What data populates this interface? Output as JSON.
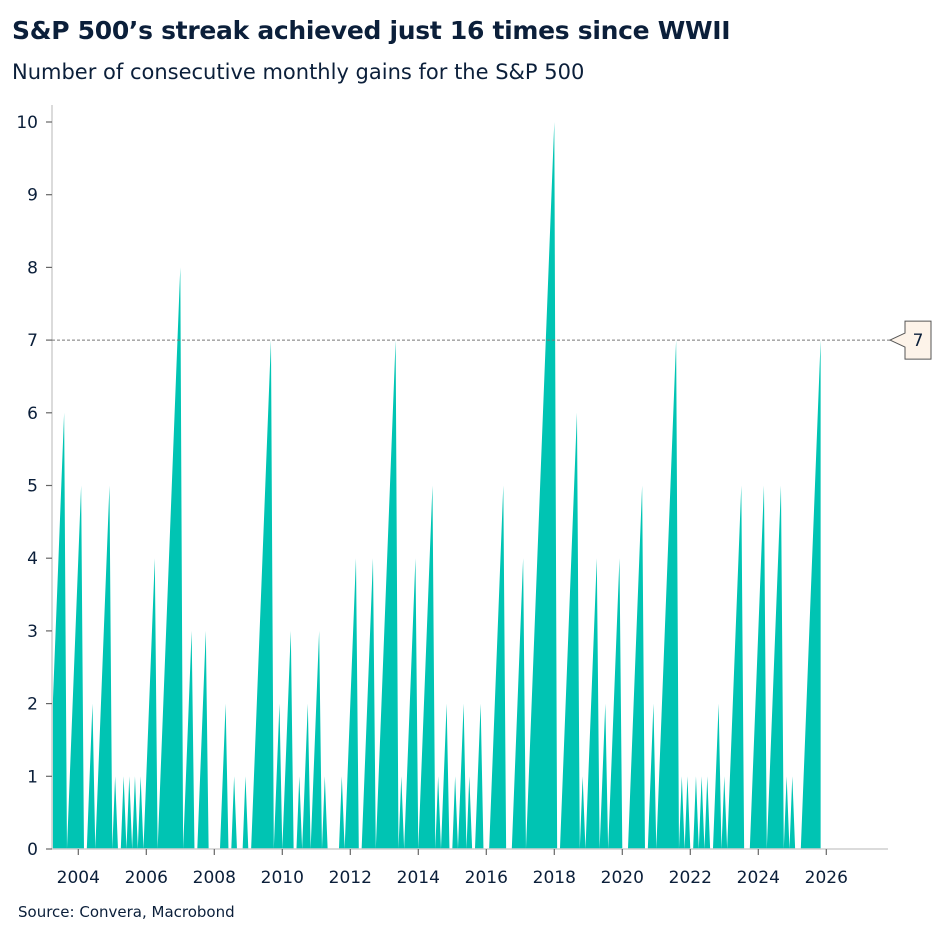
{
  "title": "S&P 500’s streak achieved just 16 times since WWII",
  "subtitle": "Number of consecutive monthly gains for the S&P 500",
  "source": "Source: Convera, Macrobond",
  "chart_data": {
    "type": "area",
    "frequency": "monthly",
    "x_range": [
      "2003-04",
      "2025-11"
    ],
    "ylim": [
      0,
      10
    ],
    "y_ticks": [
      "0",
      "1",
      "2",
      "3",
      "4",
      "5",
      "6",
      "7",
      "8",
      "9",
      "10"
    ],
    "x_ticks": [
      "2004",
      "2006",
      "2008",
      "2010",
      "2012",
      "2014",
      "2016",
      "2018",
      "2020",
      "2022",
      "2024",
      "2026"
    ],
    "grid": false,
    "color": "#00c4b3",
    "reference_line": {
      "value": 7,
      "label": "7",
      "style": "dashed"
    },
    "streak_peaks": [
      [
        "2003-08",
        6
      ],
      [
        "2004-02",
        5
      ],
      [
        "2004-06",
        2
      ],
      [
        "2004-12",
        5
      ],
      [
        "2005-02",
        1
      ],
      [
        "2005-05",
        1
      ],
      [
        "2005-07",
        1
      ],
      [
        "2005-09",
        1
      ],
      [
        "2005-11",
        1
      ],
      [
        "2006-04",
        4
      ],
      [
        "2007-01",
        8
      ],
      [
        "2007-05",
        3
      ],
      [
        "2007-10",
        3
      ],
      [
        "2008-05",
        2
      ],
      [
        "2008-08",
        1
      ],
      [
        "2008-12",
        1
      ],
      [
        "2009-09",
        7
      ],
      [
        "2009-12",
        2
      ],
      [
        "2010-04",
        3
      ],
      [
        "2010-07",
        1
      ],
      [
        "2010-10",
        2
      ],
      [
        "2011-02",
        3
      ],
      [
        "2011-04",
        1
      ],
      [
        "2011-10",
        1
      ],
      [
        "2012-03",
        4
      ],
      [
        "2012-09",
        4
      ],
      [
        "2013-05",
        7
      ],
      [
        "2013-07",
        1
      ],
      [
        "2013-12",
        4
      ],
      [
        "2014-06",
        5
      ],
      [
        "2014-08",
        1
      ],
      [
        "2014-11",
        2
      ],
      [
        "2015-02",
        1
      ],
      [
        "2015-05",
        2
      ],
      [
        "2015-07",
        1
      ],
      [
        "2015-11",
        2
      ],
      [
        "2016-07",
        5
      ],
      [
        "2017-02",
        4
      ],
      [
        "2018-01",
        10
      ],
      [
        "2018-09",
        6
      ],
      [
        "2018-11",
        1
      ],
      [
        "2019-04",
        4
      ],
      [
        "2019-07",
        2
      ],
      [
        "2019-12",
        4
      ],
      [
        "2020-08",
        5
      ],
      [
        "2020-12",
        2
      ],
      [
        "2021-08",
        7
      ],
      [
        "2021-10",
        1
      ],
      [
        "2021-12",
        1
      ],
      [
        "2022-03",
        1
      ],
      [
        "2022-05",
        1
      ],
      [
        "2022-07",
        1
      ],
      [
        "2022-11",
        2
      ],
      [
        "2023-01",
        1
      ],
      [
        "2023-07",
        5
      ],
      [
        "2024-03",
        5
      ],
      [
        "2024-09",
        5
      ],
      [
        "2024-11",
        1
      ],
      [
        "2025-01",
        1
      ],
      [
        "2025-11",
        7
      ]
    ]
  }
}
